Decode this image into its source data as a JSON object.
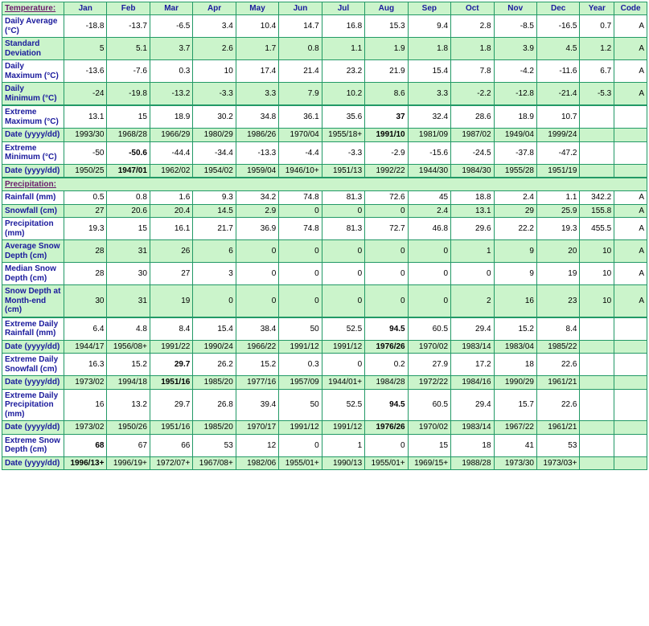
{
  "headers": {
    "section_temp": "Temperature:",
    "section_precip": "Precipitation:",
    "months": [
      "Jan",
      "Feb",
      "Mar",
      "Apr",
      "May",
      "Jun",
      "Jul",
      "Aug",
      "Sep",
      "Oct",
      "Nov",
      "Dec"
    ],
    "year": "Year",
    "code": "Code"
  },
  "rows": [
    {
      "label": "Daily Average (°C)",
      "vals": [
        "-18.8",
        "-13.7",
        "-6.5",
        "3.4",
        "10.4",
        "14.7",
        "16.8",
        "15.3",
        "9.4",
        "2.8",
        "-8.5",
        "-16.5",
        "0.7",
        "A"
      ],
      "green": false
    },
    {
      "label": "Standard Deviation",
      "vals": [
        "5",
        "5.1",
        "3.7",
        "2.6",
        "1.7",
        "0.8",
        "1.1",
        "1.9",
        "1.8",
        "1.8",
        "3.9",
        "4.5",
        "1.2",
        "A"
      ],
      "green": true
    },
    {
      "label": "Daily Maximum (°C)",
      "vals": [
        "-13.6",
        "-7.6",
        "0.3",
        "10",
        "17.4",
        "21.4",
        "23.2",
        "21.9",
        "15.4",
        "7.8",
        "-4.2",
        "-11.6",
        "6.7",
        "A"
      ],
      "green": false
    },
    {
      "label": "Daily Minimum (°C)",
      "vals": [
        "-24",
        "-19.8",
        "-13.2",
        "-3.3",
        "3.3",
        "7.9",
        "10.2",
        "8.6",
        "3.3",
        "-2.2",
        "-12.8",
        "-21.4",
        "-5.3",
        "A"
      ],
      "green": true,
      "thickBottom": true
    },
    {
      "label": "Extreme Maximum (°C)",
      "vals": [
        "13.1",
        "15",
        "18.9",
        "30.2",
        "34.8",
        "36.1",
        "35.6",
        "37",
        "32.4",
        "28.6",
        "18.9",
        "10.7",
        "",
        ""
      ],
      "green": false,
      "boldIdx": [
        7
      ]
    },
    {
      "label": "Date (yyyy/dd)",
      "vals": [
        "1993/30",
        "1968/28",
        "1966/29",
        "1980/29",
        "1986/26",
        "1970/04",
        "1955/18+",
        "1991/10",
        "1981/09",
        "1987/02",
        "1949/04",
        "1999/24",
        "",
        ""
      ],
      "green": true,
      "boldIdx": [
        7
      ]
    },
    {
      "label": "Extreme Minimum (°C)",
      "vals": [
        "-50",
        "-50.6",
        "-44.4",
        "-34.4",
        "-13.3",
        "-4.4",
        "-3.3",
        "-2.9",
        "-15.6",
        "-24.5",
        "-37.8",
        "-47.2",
        "",
        ""
      ],
      "green": false,
      "boldIdx": [
        1
      ]
    },
    {
      "label": "Date (yyyy/dd)",
      "vals": [
        "1950/25",
        "1947/01",
        "1962/02",
        "1954/02",
        "1959/04",
        "1946/10+",
        "1951/13",
        "1992/22",
        "1944/30",
        "1984/30",
        "1955/28",
        "1951/19",
        "",
        ""
      ],
      "green": true,
      "boldIdx": [
        1
      ],
      "thickBottom": true
    }
  ],
  "precip_rows": [
    {
      "label": "Rainfall (mm)",
      "vals": [
        "0.5",
        "0.8",
        "1.6",
        "9.3",
        "34.2",
        "74.8",
        "81.3",
        "72.6",
        "45",
        "18.8",
        "2.4",
        "1.1",
        "342.2",
        "A"
      ],
      "green": false
    },
    {
      "label": "Snowfall (cm)",
      "vals": [
        "27",
        "20.6",
        "20.4",
        "14.5",
        "2.9",
        "0",
        "0",
        "0",
        "2.4",
        "13.1",
        "29",
        "25.9",
        "155.8",
        "A"
      ],
      "green": true
    },
    {
      "label": "Precipitation (mm)",
      "vals": [
        "19.3",
        "15",
        "16.1",
        "21.7",
        "36.9",
        "74.8",
        "81.3",
        "72.7",
        "46.8",
        "29.6",
        "22.2",
        "19.3",
        "455.5",
        "A"
      ],
      "green": false
    },
    {
      "label": "Average Snow Depth (cm)",
      "vals": [
        "28",
        "31",
        "26",
        "6",
        "0",
        "0",
        "0",
        "0",
        "0",
        "1",
        "9",
        "20",
        "10",
        "A"
      ],
      "green": true
    },
    {
      "label": "Median Snow Depth (cm)",
      "vals": [
        "28",
        "30",
        "27",
        "3",
        "0",
        "0",
        "0",
        "0",
        "0",
        "0",
        "9",
        "19",
        "10",
        "A"
      ],
      "green": false
    },
    {
      "label": "Snow Depth at Month-end (cm)",
      "vals": [
        "30",
        "31",
        "19",
        "0",
        "0",
        "0",
        "0",
        "0",
        "0",
        "2",
        "16",
        "23",
        "10",
        "A"
      ],
      "green": true,
      "thickBottom": true
    },
    {
      "label": "Extreme Daily Rainfall (mm)",
      "vals": [
        "6.4",
        "4.8",
        "8.4",
        "15.4",
        "38.4",
        "50",
        "52.5",
        "94.5",
        "60.5",
        "29.4",
        "15.2",
        "8.4",
        "",
        ""
      ],
      "green": false,
      "boldIdx": [
        7
      ]
    },
    {
      "label": "Date (yyyy/dd)",
      "vals": [
        "1944/17",
        "1956/08+",
        "1991/22",
        "1990/24",
        "1966/22",
        "1991/12",
        "1991/12",
        "1976/26",
        "1970/02",
        "1983/14",
        "1983/04",
        "1985/22",
        "",
        ""
      ],
      "green": true,
      "boldIdx": [
        7
      ]
    },
    {
      "label": "Extreme Daily Snowfall (cm)",
      "vals": [
        "16.3",
        "15.2",
        "29.7",
        "26.2",
        "15.2",
        "0.3",
        "0",
        "0.2",
        "27.9",
        "17.2",
        "18",
        "22.6",
        "",
        ""
      ],
      "green": false,
      "boldIdx": [
        2
      ]
    },
    {
      "label": "Date (yyyy/dd)",
      "vals": [
        "1973/02",
        "1994/18",
        "1951/16",
        "1985/20",
        "1977/16",
        "1957/09",
        "1944/01+",
        "1984/28",
        "1972/22",
        "1984/16",
        "1990/29",
        "1961/21",
        "",
        ""
      ],
      "green": true,
      "boldIdx": [
        2
      ]
    },
    {
      "label": "Extreme Daily Precipitation (mm)",
      "vals": [
        "16",
        "13.2",
        "29.7",
        "26.8",
        "39.4",
        "50",
        "52.5",
        "94.5",
        "60.5",
        "29.4",
        "15.7",
        "22.6",
        "",
        ""
      ],
      "green": false,
      "boldIdx": [
        7
      ]
    },
    {
      "label": "Date (yyyy/dd)",
      "vals": [
        "1973/02",
        "1950/26",
        "1951/16",
        "1985/20",
        "1970/17",
        "1991/12",
        "1991/12",
        "1976/26",
        "1970/02",
        "1983/14",
        "1967/22",
        "1961/21",
        "",
        ""
      ],
      "green": true,
      "boldIdx": [
        7
      ]
    },
    {
      "label": "Extreme Snow Depth (cm)",
      "vals": [
        "68",
        "67",
        "66",
        "53",
        "12",
        "0",
        "1",
        "0",
        "15",
        "18",
        "41",
        "53",
        "",
        ""
      ],
      "green": false,
      "boldIdx": [
        0
      ]
    },
    {
      "label": "Date (yyyy/dd)",
      "vals": [
        "1996/13+",
        "1996/19+",
        "1972/07+",
        "1967/08+",
        "1982/06",
        "1955/01+",
        "1990/13",
        "1955/01+",
        "1969/15+",
        "1988/28",
        "1973/30",
        "1973/03+",
        "",
        ""
      ],
      "green": true,
      "boldIdx": [
        0
      ]
    }
  ]
}
